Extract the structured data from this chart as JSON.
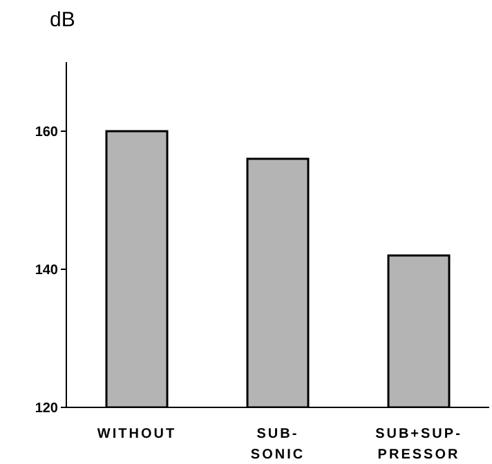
{
  "chart_data": {
    "type": "bar",
    "ylabel": "dB",
    "categories": [
      "WITHOUT",
      "SUB-\nSONIC",
      "SUB+SUP-\nPRESSOR"
    ],
    "values": [
      160,
      156,
      142
    ],
    "color": "#b4b4b4",
    "ylim": [
      120,
      170
    ],
    "yticks": [
      120,
      140,
      160
    ]
  }
}
